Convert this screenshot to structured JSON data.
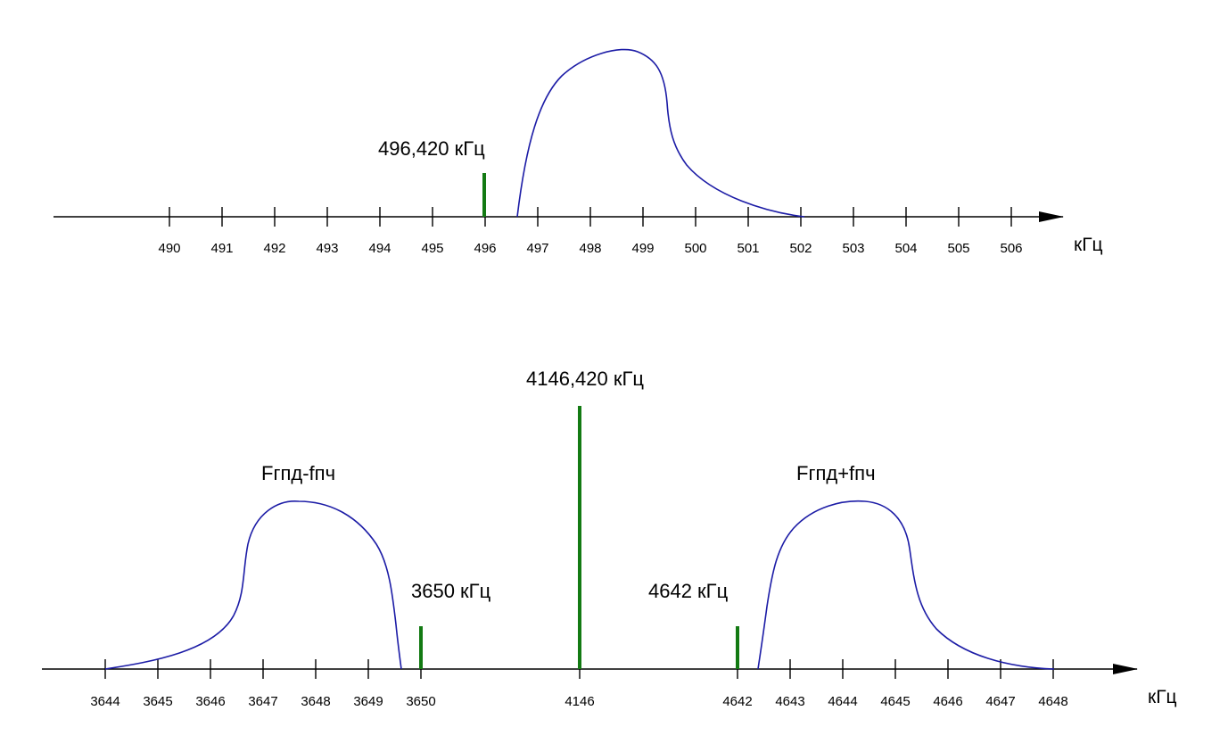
{
  "top_axis": {
    "unit": "кГц",
    "ticks": [
      "490",
      "491",
      "492",
      "493",
      "494",
      "495",
      "496",
      "497",
      "498",
      "499",
      "500",
      "501",
      "502",
      "503",
      "504",
      "505",
      "506"
    ],
    "carrier": {
      "label": "496,420 кГц",
      "level": 0.25
    }
  },
  "bottom_axis": {
    "unit": "кГц",
    "ticks": [
      "3644",
      "3645",
      "3646",
      "3647",
      "3648",
      "3649",
      "3650",
      "4146",
      "4642",
      "4643",
      "4644",
      "4645",
      "4646",
      "4647",
      "4648"
    ],
    "carriers": [
      {
        "label": "3650 кГц",
        "level": 0.16
      },
      {
        "label": "4146,420 кГц",
        "level": 1.0
      },
      {
        "label": "4642 кГц",
        "level": 0.16
      }
    ],
    "sidebands": [
      {
        "label": "Fгпд-fпч"
      },
      {
        "label": "Fгпд+fпч"
      }
    ]
  },
  "colors": {
    "axis": "#000000",
    "band": "#1c1ca6",
    "carrier": "#137a13"
  }
}
